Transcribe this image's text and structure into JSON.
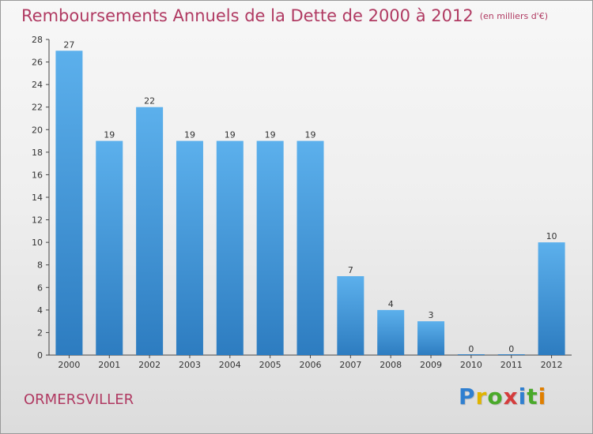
{
  "page": {
    "title": "Remboursements Annuels de la Dette de 2000 à 2012",
    "subtitle": "(en milliers d'€)",
    "commune": "ORMERSVILLER",
    "logo": {
      "letters": [
        "P",
        "r",
        "o",
        "x",
        "i",
        "t",
        "i"
      ],
      "colors": [
        "#2f7fd0",
        "#e0b400",
        "#4aa92a",
        "#d43c3c",
        "#2f7fd0",
        "#4aa92a",
        "#e07f00"
      ]
    }
  },
  "chart_data": {
    "type": "bar",
    "title": "Remboursements Annuels de la Dette de 2000 à 2012",
    "subtitle": "(en milliers d'€)",
    "categories": [
      "2000",
      "2001",
      "2002",
      "2003",
      "2004",
      "2005",
      "2006",
      "2007",
      "2008",
      "2009",
      "2010",
      "2011",
      "2012"
    ],
    "values": [
      27,
      19,
      22,
      19,
      19,
      19,
      19,
      7,
      4,
      3,
      0,
      0,
      10
    ],
    "ylim": [
      0,
      28
    ],
    "yticks": [
      0,
      2,
      4,
      6,
      8,
      10,
      12,
      14,
      16,
      18,
      20,
      22,
      24,
      26,
      28
    ],
    "bar_color_top": "#5cb0ec",
    "bar_color_bottom": "#2d7cc0",
    "grid": false
  }
}
